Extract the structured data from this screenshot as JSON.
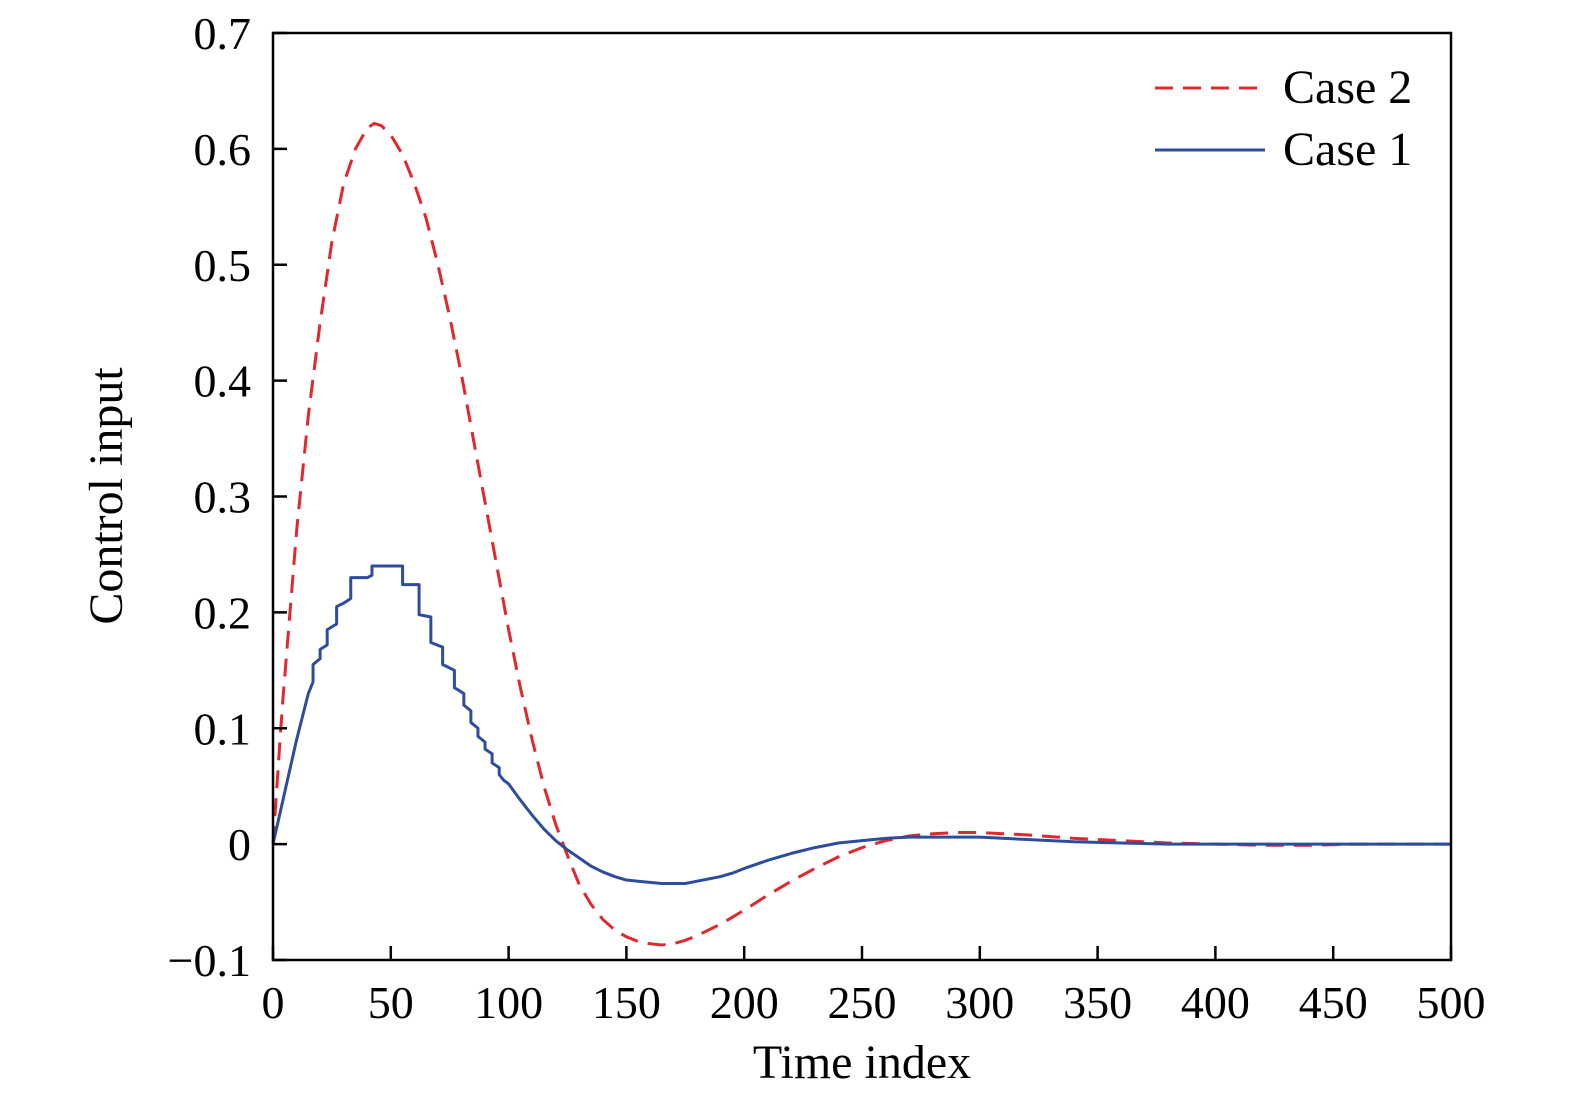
{
  "chart_data": {
    "type": "line",
    "xlabel": "Time index",
    "ylabel": "Control input",
    "xlim": [
      0,
      500
    ],
    "ylim": [
      -0.1,
      0.7
    ],
    "xticks": [
      0,
      50,
      100,
      150,
      200,
      250,
      300,
      350,
      400,
      450,
      500
    ],
    "xtick_labels": [
      "0",
      "50",
      "100",
      "150",
      "200",
      "250",
      "300",
      "350",
      "400",
      "450",
      "500"
    ],
    "yticks": [
      -0.1,
      0,
      0.1,
      0.2,
      0.3,
      0.4,
      0.5,
      0.6,
      0.7
    ],
    "ytick_labels": [
      "−0.1",
      "0",
      "0.1",
      "0.2",
      "0.3",
      "0.4",
      "0.5",
      "0.6",
      "0.7"
    ],
    "grid": false,
    "legend_position": "top-right",
    "series": [
      {
        "name": "Case 2",
        "color": "#e0282e",
        "style": "dashed",
        "x": [
          0,
          2,
          4,
          6,
          8,
          10,
          15,
          20,
          25,
          30,
          35,
          40,
          43,
          46,
          50,
          55,
          60,
          65,
          70,
          75,
          80,
          85,
          90,
          95,
          100,
          105,
          110,
          115,
          120,
          125,
          130,
          135,
          140,
          145,
          150,
          155,
          160,
          165,
          170,
          175,
          180,
          190,
          200,
          210,
          220,
          230,
          240,
          250,
          260,
          270,
          280,
          290,
          300,
          310,
          320,
          340,
          360,
          380,
          400,
          420,
          440,
          460,
          480,
          500
        ],
        "y": [
          0.0,
          0.06,
          0.12,
          0.17,
          0.22,
          0.27,
          0.37,
          0.45,
          0.52,
          0.57,
          0.6,
          0.618,
          0.622,
          0.62,
          0.612,
          0.595,
          0.57,
          0.54,
          0.5,
          0.455,
          0.405,
          0.35,
          0.295,
          0.24,
          0.185,
          0.135,
          0.09,
          0.05,
          0.017,
          -0.01,
          -0.035,
          -0.052,
          -0.065,
          -0.074,
          -0.08,
          -0.084,
          -0.086,
          -0.087,
          -0.086,
          -0.083,
          -0.079,
          -0.069,
          -0.057,
          -0.044,
          -0.032,
          -0.021,
          -0.011,
          -0.003,
          0.003,
          0.007,
          0.009,
          0.01,
          0.01,
          0.009,
          0.008,
          0.005,
          0.003,
          0.001,
          0.0,
          -0.001,
          -0.001,
          0.0,
          0.0,
          0.0
        ]
      },
      {
        "name": "Case 1",
        "color": "#2d4d9c",
        "style": "solid",
        "x": [
          0,
          5,
          10,
          15,
          17,
          17,
          20,
          20,
          23,
          23,
          27,
          27,
          30,
          30,
          33,
          33,
          40,
          40,
          42,
          42,
          55,
          55,
          62,
          62,
          67,
          67,
          72,
          72,
          77,
          77,
          81,
          81,
          84,
          84,
          87,
          87,
          90,
          90,
          93,
          93,
          96,
          96,
          98,
          100,
          105,
          110,
          115,
          120,
          125,
          130,
          135,
          140,
          145,
          150,
          155,
          160,
          165,
          170,
          175,
          180,
          185,
          190,
          195,
          200,
          210,
          220,
          230,
          240,
          250,
          260,
          270,
          280,
          290,
          300,
          320,
          340,
          360,
          380,
          400,
          420,
          450,
          500
        ],
        "y": [
          0.0,
          0.045,
          0.09,
          0.13,
          0.14,
          0.155,
          0.16,
          0.168,
          0.172,
          0.185,
          0.19,
          0.205,
          0.208,
          0.208,
          0.212,
          0.23,
          0.23,
          0.23,
          0.232,
          0.24,
          0.24,
          0.224,
          0.224,
          0.198,
          0.196,
          0.174,
          0.17,
          0.155,
          0.15,
          0.135,
          0.13,
          0.12,
          0.115,
          0.105,
          0.1,
          0.093,
          0.088,
          0.082,
          0.078,
          0.07,
          0.066,
          0.06,
          0.055,
          0.052,
          0.038,
          0.025,
          0.013,
          0.003,
          -0.005,
          -0.012,
          -0.019,
          -0.024,
          -0.028,
          -0.031,
          -0.032,
          -0.033,
          -0.034,
          -0.034,
          -0.034,
          -0.032,
          -0.03,
          -0.028,
          -0.025,
          -0.021,
          -0.014,
          -0.008,
          -0.003,
          0.001,
          0.003,
          0.005,
          0.006,
          0.006,
          0.006,
          0.006,
          0.004,
          0.002,
          0.001,
          0.0,
          0.0,
          0.0,
          0.0,
          0.0
        ]
      }
    ]
  }
}
